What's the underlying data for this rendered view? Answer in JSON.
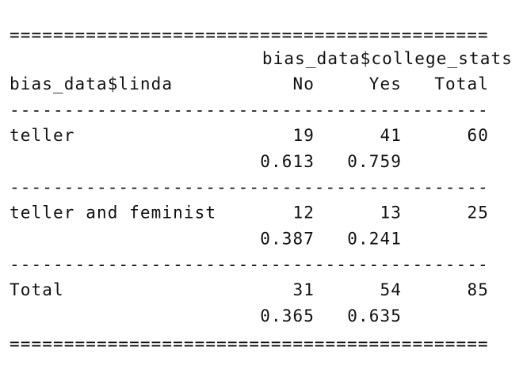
{
  "rule_double": "============================================",
  "rule_single": "--------------------------------------------",
  "column_variable": "bias_data$college_stats",
  "row_variable": "bias_data$linda",
  "columns": [
    "No",
    "Yes",
    "Total"
  ],
  "rows": [
    {
      "label": "teller",
      "counts": [
        19,
        41,
        60
      ],
      "proportions": [
        0.613,
        0.759
      ]
    },
    {
      "label": "teller and feminist",
      "counts": [
        12,
        13,
        25
      ],
      "proportions": [
        0.387,
        0.241
      ]
    },
    {
      "label": "Total",
      "counts": [
        31,
        54,
        85
      ],
      "proportions": [
        0.365,
        0.635
      ]
    }
  ]
}
